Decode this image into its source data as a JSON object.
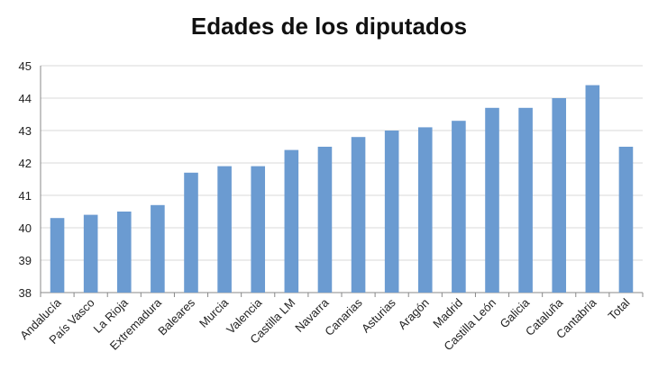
{
  "chart_data": {
    "type": "bar",
    "title": "Edades de los diputados",
    "xlabel": "",
    "ylabel": "",
    "ylim": [
      38,
      45
    ],
    "yticks": [
      38,
      39,
      40,
      41,
      42,
      43,
      44,
      45
    ],
    "grid": true,
    "legend": "none",
    "categories": [
      "Andalucía",
      "País Vasco",
      "La Rioja",
      "Extremadura",
      "Baleares",
      "Murcia",
      "Valencia",
      "Castilla LM",
      "Navarra",
      "Canarias",
      "Asturias",
      "Aragón",
      "Madrid",
      "Castilla León",
      "Galicia",
      "Cataluña",
      "Cantabria",
      "Total"
    ],
    "series": [
      {
        "values": [
          40.3,
          40.4,
          40.5,
          40.7,
          41.7,
          41.9,
          41.9,
          42.4,
          42.5,
          42.8,
          43.0,
          43.1,
          43.3,
          43.7,
          43.7,
          44.0,
          44.4,
          42.5
        ]
      }
    ],
    "colors": {
      "bar": "#6b9bd1",
      "grid": "#d9d9d9",
      "axis": "#888888"
    }
  }
}
